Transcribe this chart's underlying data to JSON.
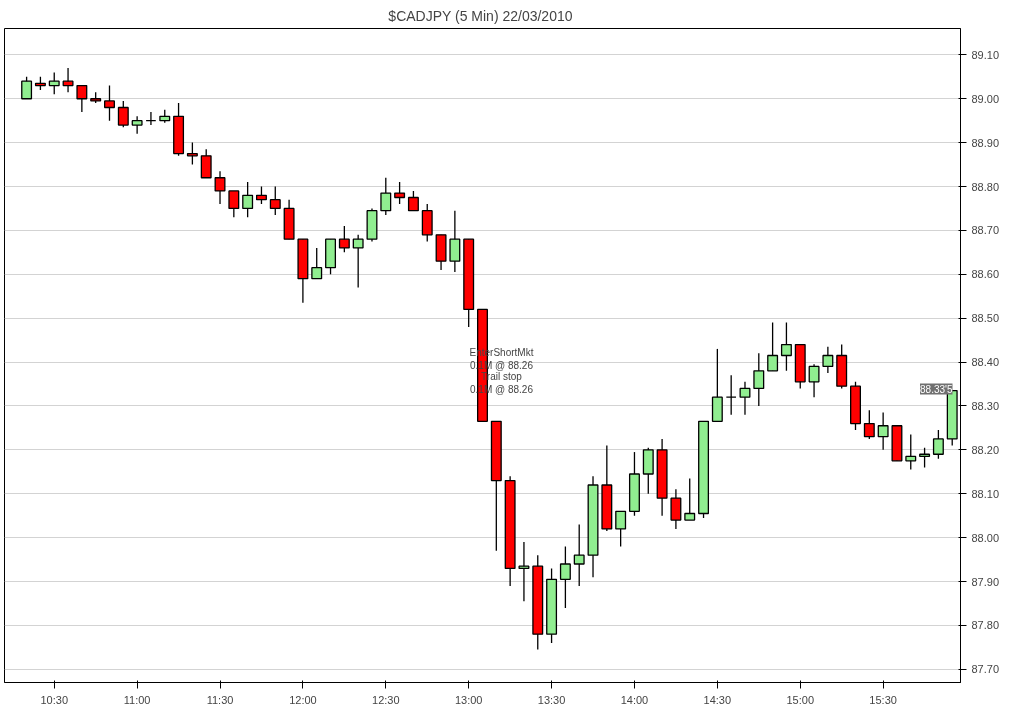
{
  "chart_data": {
    "type": "candlestick",
    "title": "$CADJPY (5 Min)  22/03/2010",
    "x": [
      "2010-03-22T10:20",
      "2010-03-22T10:25",
      "2010-03-22T10:30",
      "2010-03-22T10:35",
      "2010-03-22T10:40",
      "2010-03-22T10:45",
      "2010-03-22T10:50",
      "2010-03-22T10:55",
      "2010-03-22T11:00",
      "2010-03-22T11:05",
      "2010-03-22T11:10",
      "2010-03-22T11:15",
      "2010-03-22T11:20",
      "2010-03-22T11:25",
      "2010-03-22T11:30",
      "2010-03-22T11:35",
      "2010-03-22T11:40",
      "2010-03-22T11:45",
      "2010-03-22T11:50",
      "2010-03-22T11:55",
      "2010-03-22T12:00",
      "2010-03-22T12:05",
      "2010-03-22T12:10",
      "2010-03-22T12:15",
      "2010-03-22T12:20",
      "2010-03-22T12:25",
      "2010-03-22T12:30",
      "2010-03-22T12:35",
      "2010-03-22T12:40",
      "2010-03-22T12:45",
      "2010-03-22T12:50",
      "2010-03-22T12:55",
      "2010-03-22T13:00",
      "2010-03-22T13:05",
      "2010-03-22T13:10",
      "2010-03-22T13:15",
      "2010-03-22T13:20",
      "2010-03-22T13:25",
      "2010-03-22T13:30",
      "2010-03-22T13:35",
      "2010-03-22T13:40",
      "2010-03-22T13:45",
      "2010-03-22T13:50",
      "2010-03-22T13:55",
      "2010-03-22T14:00",
      "2010-03-22T14:05",
      "2010-03-22T14:10",
      "2010-03-22T14:15",
      "2010-03-22T14:20",
      "2010-03-22T14:25",
      "2010-03-22T14:30",
      "2010-03-22T14:35",
      "2010-03-22T14:40",
      "2010-03-22T14:45",
      "2010-03-22T14:50",
      "2010-03-22T14:55",
      "2010-03-22T15:00",
      "2010-03-22T15:05",
      "2010-03-22T15:10",
      "2010-03-22T15:15",
      "2010-03-22T15:20",
      "2010-03-22T15:25",
      "2010-03-22T15:30",
      "2010-03-22T15:35",
      "2010-03-22T15:40",
      "2010-03-22T15:45",
      "2010-03-22T15:50",
      "2010-03-22T15:55"
    ],
    "ohlc": [
      [
        89.0,
        89.05,
        89.0,
        89.04
      ],
      [
        89.035,
        89.05,
        89.02,
        89.03
      ],
      [
        89.03,
        89.06,
        89.01,
        89.04
      ],
      [
        89.04,
        89.07,
        89.015,
        89.03
      ],
      [
        89.03,
        89.03,
        88.97,
        89.0
      ],
      [
        89.0,
        89.015,
        88.99,
        88.995
      ],
      [
        88.995,
        89.03,
        88.95,
        88.98
      ],
      [
        88.98,
        88.995,
        88.935,
        88.94
      ],
      [
        88.94,
        88.96,
        88.92,
        88.95
      ],
      [
        88.95,
        88.97,
        88.94,
        88.95
      ],
      [
        88.95,
        88.975,
        88.945,
        88.96
      ],
      [
        88.96,
        88.99,
        88.87,
        88.875
      ],
      [
        88.875,
        88.9,
        88.85,
        88.87
      ],
      [
        88.87,
        88.885,
        88.82,
        88.82
      ],
      [
        88.82,
        88.835,
        88.76,
        88.79
      ],
      [
        88.79,
        88.79,
        88.73,
        88.75
      ],
      [
        88.75,
        88.81,
        88.73,
        88.78
      ],
      [
        88.78,
        88.8,
        88.76,
        88.77
      ],
      [
        88.77,
        88.8,
        88.735,
        88.75
      ],
      [
        88.75,
        88.77,
        88.68,
        88.68
      ],
      [
        88.68,
        88.68,
        88.535,
        88.59
      ],
      [
        88.59,
        88.66,
        88.59,
        88.615
      ],
      [
        88.615,
        88.68,
        88.6,
        88.68
      ],
      [
        88.68,
        88.71,
        88.65,
        88.66
      ],
      [
        88.66,
        88.69,
        88.57,
        88.68
      ],
      [
        88.68,
        88.75,
        88.675,
        88.745
      ],
      [
        88.745,
        88.82,
        88.735,
        88.785
      ],
      [
        88.785,
        88.81,
        88.76,
        88.775
      ],
      [
        88.775,
        88.79,
        88.745,
        88.745
      ],
      [
        88.745,
        88.76,
        88.675,
        88.69
      ],
      [
        88.69,
        88.69,
        88.61,
        88.63
      ],
      [
        88.63,
        88.745,
        88.605,
        88.68
      ],
      [
        88.68,
        88.68,
        88.48,
        88.52
      ],
      [
        88.52,
        88.52,
        88.265,
        88.265
      ],
      [
        88.265,
        88.265,
        87.97,
        88.13
      ],
      [
        88.13,
        88.14,
        87.89,
        87.93
      ],
      [
        87.93,
        87.99,
        87.855,
        87.935
      ],
      [
        87.935,
        87.96,
        87.745,
        87.78
      ],
      [
        87.78,
        87.93,
        87.76,
        87.905
      ],
      [
        87.905,
        87.98,
        87.84,
        87.94
      ],
      [
        87.94,
        88.03,
        87.89,
        87.96
      ],
      [
        87.96,
        88.14,
        87.91,
        88.12
      ],
      [
        88.12,
        88.21,
        88.015,
        88.02
      ],
      [
        88.02,
        88.06,
        87.98,
        88.06
      ],
      [
        88.06,
        88.195,
        88.05,
        88.145
      ],
      [
        88.145,
        88.205,
        88.1,
        88.2
      ],
      [
        88.2,
        88.225,
        88.05,
        88.09
      ],
      [
        88.09,
        88.11,
        88.02,
        88.04
      ],
      [
        88.04,
        88.135,
        88.04,
        88.055
      ],
      [
        88.055,
        88.265,
        88.045,
        88.265
      ],
      [
        88.265,
        88.43,
        88.265,
        88.32
      ],
      [
        88.32,
        88.37,
        88.28,
        88.32
      ],
      [
        88.32,
        88.355,
        88.28,
        88.34
      ],
      [
        88.34,
        88.42,
        88.3,
        88.38
      ],
      [
        88.38,
        88.49,
        88.38,
        88.415
      ],
      [
        88.415,
        88.49,
        88.38,
        88.44
      ],
      [
        88.44,
        88.44,
        88.34,
        88.355
      ],
      [
        88.355,
        88.395,
        88.32,
        88.39
      ],
      [
        88.39,
        88.435,
        88.375,
        88.415
      ],
      [
        88.415,
        88.44,
        88.34,
        88.345
      ],
      [
        88.345,
        88.355,
        88.245,
        88.26
      ],
      [
        88.26,
        88.29,
        88.225,
        88.23
      ],
      [
        88.23,
        88.285,
        88.2,
        88.255
      ],
      [
        88.255,
        88.255,
        88.175,
        88.175
      ],
      [
        88.175,
        88.235,
        88.155,
        88.185
      ],
      [
        88.185,
        88.205,
        88.16,
        88.19
      ],
      [
        88.19,
        88.245,
        88.18,
        88.225
      ],
      [
        88.225,
        88.335,
        88.21,
        88.335
      ]
    ],
    "colors": [
      "#90ee90",
      "#ff0000",
      "#90ee90",
      "#ff0000",
      "#ff0000",
      "#ff0000",
      "#ff0000",
      "#ff0000",
      "#90ee90",
      "#000000",
      "#90ee90",
      "#ff0000",
      "#ff0000",
      "#ff0000",
      "#ff0000",
      "#ff0000",
      "#90ee90",
      "#ff0000",
      "#ff0000",
      "#ff0000",
      "#ff0000",
      "#90ee90",
      "#90ee90",
      "#ff0000",
      "#90ee90",
      "#90ee90",
      "#90ee90",
      "#ff0000",
      "#ff0000",
      "#ff0000",
      "#ff0000",
      "#90ee90",
      "#ff0000",
      "#ff0000",
      "#ff0000",
      "#ff0000",
      "#90ee90",
      "#ff0000",
      "#90ee90",
      "#90ee90",
      "#90ee90",
      "#90ee90",
      "#ff0000",
      "#90ee90",
      "#90ee90",
      "#90ee90",
      "#ff0000",
      "#ff0000",
      "#90ee90",
      "#90ee90",
      "#90ee90",
      "#000000",
      "#90ee90",
      "#90ee90",
      "#90ee90",
      "#90ee90",
      "#ff0000",
      "#90ee90",
      "#90ee90",
      "#ff0000",
      "#ff0000",
      "#ff0000",
      "#90ee90",
      "#ff0000",
      "#90ee90",
      "#90ee90",
      "#90ee90",
      "#90ee90"
    ],
    "xlim": [
      "2010-03-22T10:12",
      "2010-03-22T15:58"
    ],
    "xticks": [
      {
        "value": "2010-03-22T10:30",
        "label": "10:30"
      },
      {
        "value": "2010-03-22T11:00",
        "label": "11:00"
      },
      {
        "value": "2010-03-22T11:30",
        "label": "11:30"
      },
      {
        "value": "2010-03-22T12:00",
        "label": "12:00"
      },
      {
        "value": "2010-03-22T12:30",
        "label": "12:30"
      },
      {
        "value": "2010-03-22T13:00",
        "label": "13:00"
      },
      {
        "value": "2010-03-22T13:30",
        "label": "13:30"
      },
      {
        "value": "2010-03-22T14:00",
        "label": "14:00"
      },
      {
        "value": "2010-03-22T14:30",
        "label": "14:30"
      },
      {
        "value": "2010-03-22T15:00",
        "label": "15:00"
      },
      {
        "value": "2010-03-22T15:30",
        "label": "15:30"
      }
    ],
    "ylim": [
      87.67,
      89.16
    ],
    "yticks": [
      {
        "value": 87.7,
        "label": "87.70"
      },
      {
        "value": 87.8,
        "label": "87.80"
      },
      {
        "value": 87.9,
        "label": "87.90"
      },
      {
        "value": 88.0,
        "label": "88.00"
      },
      {
        "value": 88.1,
        "label": "88.10"
      },
      {
        "value": 88.2,
        "label": "88.20"
      },
      {
        "value": 88.3,
        "label": "88.30"
      },
      {
        "value": 88.4,
        "label": "88.40"
      },
      {
        "value": 88.5,
        "label": "88.50"
      },
      {
        "value": 88.6,
        "label": "88.60"
      },
      {
        "value": 88.7,
        "label": "88.70"
      },
      {
        "value": 88.8,
        "label": "88.80"
      },
      {
        "value": 88.9,
        "label": "88.90"
      },
      {
        "value": 89.0,
        "label": "89.00"
      },
      {
        "value": 89.1,
        "label": "89.10"
      }
    ],
    "grid": true,
    "annotations": [
      "EnterShortMkt\n0.1M @ 88.26",
      "Trail stop\n0.1M @ 88.26",
      "88.33'5"
    ]
  }
}
